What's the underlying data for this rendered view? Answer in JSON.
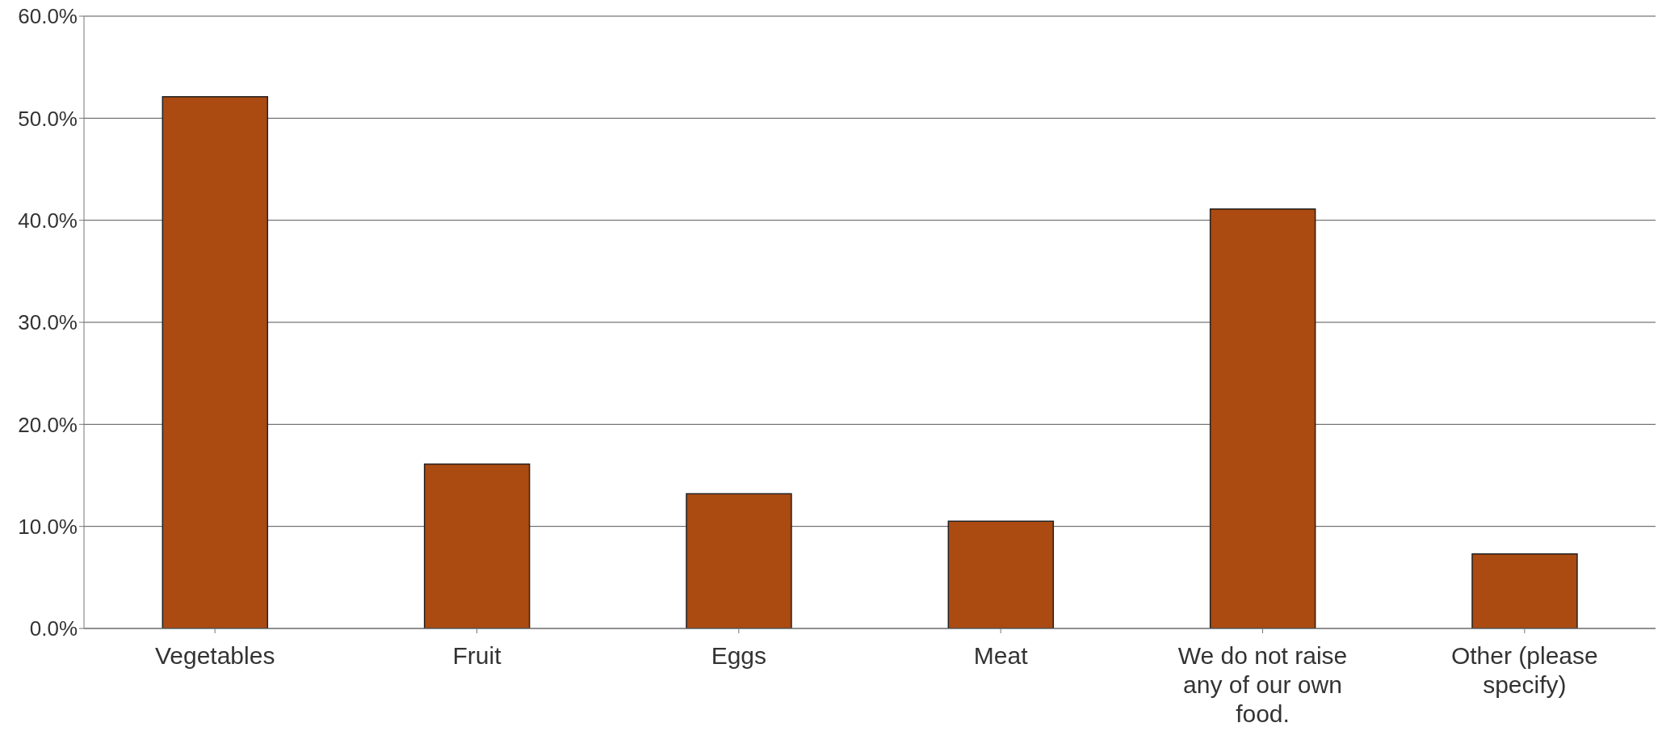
{
  "chart_data": {
    "type": "bar",
    "categories": [
      "Vegetables",
      "Fruit",
      "Eggs",
      "Meat",
      "We do not raise any of our own food.",
      "Other (please specify)"
    ],
    "values": [
      52.1,
      16.1,
      13.2,
      10.5,
      41.1,
      7.3
    ],
    "color": "#ab4a11",
    "ylim": [
      0,
      60
    ],
    "yticks": [
      {
        "value": 0,
        "label": "0.0%"
      },
      {
        "value": 10,
        "label": "10.0%"
      },
      {
        "value": 20,
        "label": "20.0%"
      },
      {
        "value": 30,
        "label": "30.0%"
      },
      {
        "value": 40,
        "label": "40.0%"
      },
      {
        "value": 50,
        "label": "50.0%"
      },
      {
        "value": 60,
        "label": "60.0%"
      }
    ],
    "grid": "y"
  }
}
